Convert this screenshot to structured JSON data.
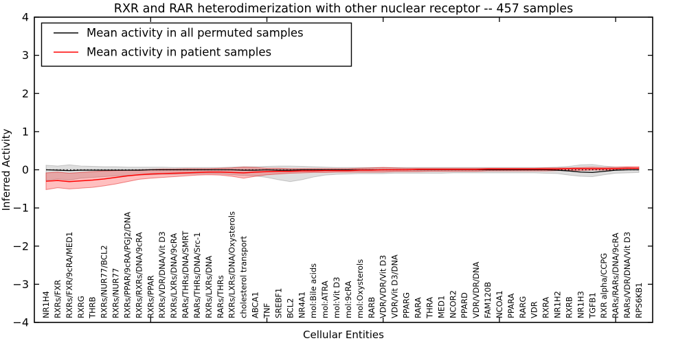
{
  "title": "RXR and RAR heterodimerization with other nuclear receptor -- 457 samples",
  "legend": {
    "items": [
      {
        "label": "Mean activity in all permuted samples",
        "color": "#000000"
      },
      {
        "label": "Mean activity in patient samples",
        "color": "#ff0000"
      }
    ]
  },
  "chart_data": {
    "type": "line",
    "title": "RXR and RAR heterodimerization with other nuclear receptor -- 457 samples",
    "xlabel": "Cellular Entities",
    "ylabel": "Inferred Activity",
    "ylim": [
      -4,
      4
    ],
    "yticks": [
      -4,
      -3,
      -2,
      -1,
      0,
      1,
      2,
      3,
      4
    ],
    "ytick_labels": [
      "−4",
      "−3",
      "−2",
      "−1",
      "0",
      "1",
      "2",
      "3",
      "4"
    ],
    "xtick_values": [
      10,
      20,
      30,
      40,
      50
    ],
    "grid": false,
    "legend_position": "upper left",
    "zero_line": true,
    "categories": [
      "NR1H4",
      "RXRs/FXR",
      "RXRs/FXR/9cRA/MED1",
      "RXRG",
      "THRB",
      "RXRs/NUR77/BCL2",
      "RXRs/NUR77",
      "RXRs/PPAR/9cRA/PGJ2/DNA",
      "RXRs/RXRs/DNA/9cRA",
      "RXRs/PPAR",
      "RXRs/VDR/DNA/Vit D3",
      "RXRs/LXRs/DNA/9cRA",
      "RARs/THRs/DNA/SMRT",
      "RARs/THRs/DNA/Src-1",
      "RXRs/LXRs/DNA",
      "RARs/THRs",
      "RXRs/LXRs/DNA/Oxysterols",
      "cholesterol transport",
      "ABCA1",
      "TNF",
      "SREBF1",
      "BCL2",
      "NR4A1",
      "mol:Bile acids",
      "mol:ATRA",
      "mol:Vit D3",
      "mol:9cRA",
      "mol:Oxysterols",
      "RARB",
      "VDR/VDR/Vit D3",
      "VDR/Vit D3/DNA",
      "PPARG",
      "RARA",
      "THRA",
      "MED1",
      "NCOR2",
      "PPARD",
      "VDR/VDR/DNA",
      "FAM120B",
      "NCOA1",
      "PPARA",
      "RARG",
      "VDR",
      "RXRA",
      "NR1H2",
      "RXRB",
      "NR1H3",
      "TGFB1",
      "RXR alpha/CCPG",
      "RARs/RARs/DNA/9cRA",
      "RARs/VDR/DNA/Vit D3",
      "RPS6KB1"
    ],
    "series": [
      {
        "name": "Mean activity in all permuted samples",
        "color": "#000000",
        "width": 1.3,
        "values": [
          0.0,
          -0.01,
          -0.02,
          -0.01,
          -0.01,
          -0.01,
          -0.01,
          -0.01,
          -0.01,
          0.0,
          0.0,
          0.0,
          0.0,
          0.0,
          0.0,
          0.0,
          0.0,
          -0.01,
          -0.01,
          0.0,
          -0.01,
          -0.01,
          0.0,
          0.0,
          0.0,
          0.0,
          0.0,
          0.0,
          0.0,
          0.0,
          0.0,
          0.0,
          0.0,
          0.0,
          0.0,
          0.0,
          0.0,
          0.0,
          0.0,
          0.0,
          0.0,
          0.0,
          0.0,
          0.0,
          -0.01,
          -0.03,
          -0.06,
          -0.07,
          -0.04,
          -0.01,
          0.0,
          0.0
        ]
      },
      {
        "name": "Mean activity in patient samples",
        "color": "#ff0000",
        "width": 1.5,
        "values": [
          -0.3,
          -0.28,
          -0.31,
          -0.29,
          -0.27,
          -0.24,
          -0.2,
          -0.16,
          -0.13,
          -0.11,
          -0.1,
          -0.09,
          -0.08,
          -0.07,
          -0.06,
          -0.06,
          -0.07,
          -0.08,
          -0.06,
          -0.05,
          -0.04,
          -0.04,
          -0.03,
          -0.03,
          -0.02,
          -0.02,
          -0.02,
          -0.01,
          -0.01,
          0.0,
          0.0,
          0.0,
          0.01,
          0.01,
          0.01,
          0.01,
          0.01,
          0.01,
          0.02,
          0.02,
          0.02,
          0.02,
          0.02,
          0.02,
          0.02,
          0.03,
          0.03,
          0.03,
          0.03,
          0.03,
          0.04,
          0.04
        ]
      }
    ],
    "bands": [
      {
        "name": "permuted-samples-std-band",
        "fill": "rgba(0,0,0,0.13)",
        "stroke": "rgba(0,0,0,0.18)",
        "upper": [
          0.12,
          0.1,
          0.13,
          0.1,
          0.09,
          0.08,
          0.08,
          0.07,
          0.07,
          0.07,
          0.07,
          0.06,
          0.06,
          0.06,
          0.06,
          0.06,
          0.07,
          0.08,
          0.08,
          0.09,
          0.1,
          0.1,
          0.09,
          0.08,
          0.07,
          0.06,
          0.06,
          0.06,
          0.06,
          0.06,
          0.06,
          0.06,
          0.06,
          0.06,
          0.06,
          0.06,
          0.06,
          0.06,
          0.06,
          0.06,
          0.06,
          0.06,
          0.06,
          0.06,
          0.07,
          0.09,
          0.13,
          0.14,
          0.1,
          0.07,
          0.06,
          0.05
        ],
        "lower": [
          -0.28,
          -0.24,
          -0.27,
          -0.22,
          -0.2,
          -0.18,
          -0.16,
          -0.15,
          -0.14,
          -0.13,
          -0.12,
          -0.12,
          -0.11,
          -0.11,
          -0.1,
          -0.11,
          -0.13,
          -0.15,
          -0.16,
          -0.2,
          -0.26,
          -0.31,
          -0.26,
          -0.19,
          -0.14,
          -0.12,
          -0.11,
          -0.1,
          -0.1,
          -0.1,
          -0.09,
          -0.09,
          -0.09,
          -0.09,
          -0.09,
          -0.08,
          -0.08,
          -0.08,
          -0.08,
          -0.08,
          -0.08,
          -0.08,
          -0.08,
          -0.09,
          -0.1,
          -0.14,
          -0.17,
          -0.18,
          -0.13,
          -0.09,
          -0.08,
          -0.07
        ]
      },
      {
        "name": "patient-samples-std-band",
        "fill": "rgba(255,0,0,0.25)",
        "stroke": "rgba(220,0,0,0.45)",
        "upper": [
          -0.08,
          -0.06,
          -0.09,
          -0.07,
          -0.05,
          -0.03,
          -0.02,
          -0.01,
          0.0,
          0.01,
          0.02,
          0.02,
          0.03,
          0.03,
          0.03,
          0.04,
          0.05,
          0.07,
          0.06,
          0.04,
          0.04,
          0.03,
          0.03,
          0.03,
          0.03,
          0.03,
          0.03,
          0.04,
          0.05,
          0.06,
          0.05,
          0.04,
          0.04,
          0.04,
          0.04,
          0.04,
          0.04,
          0.04,
          0.04,
          0.04,
          0.04,
          0.04,
          0.04,
          0.05,
          0.05,
          0.05,
          0.06,
          0.07,
          0.06,
          0.07,
          0.08,
          0.08
        ],
        "lower": [
          -0.52,
          -0.47,
          -0.5,
          -0.48,
          -0.46,
          -0.42,
          -0.37,
          -0.31,
          -0.25,
          -0.22,
          -0.2,
          -0.18,
          -0.16,
          -0.14,
          -0.13,
          -0.14,
          -0.17,
          -0.22,
          -0.17,
          -0.13,
          -0.11,
          -0.09,
          -0.08,
          -0.07,
          -0.07,
          -0.06,
          -0.06,
          -0.06,
          -0.06,
          -0.06,
          -0.05,
          -0.05,
          -0.05,
          -0.04,
          -0.04,
          -0.04,
          -0.04,
          -0.04,
          -0.03,
          -0.03,
          -0.03,
          -0.03,
          -0.03,
          -0.03,
          -0.02,
          -0.02,
          -0.02,
          -0.01,
          -0.01,
          -0.01,
          0.0,
          0.0
        ]
      }
    ]
  }
}
